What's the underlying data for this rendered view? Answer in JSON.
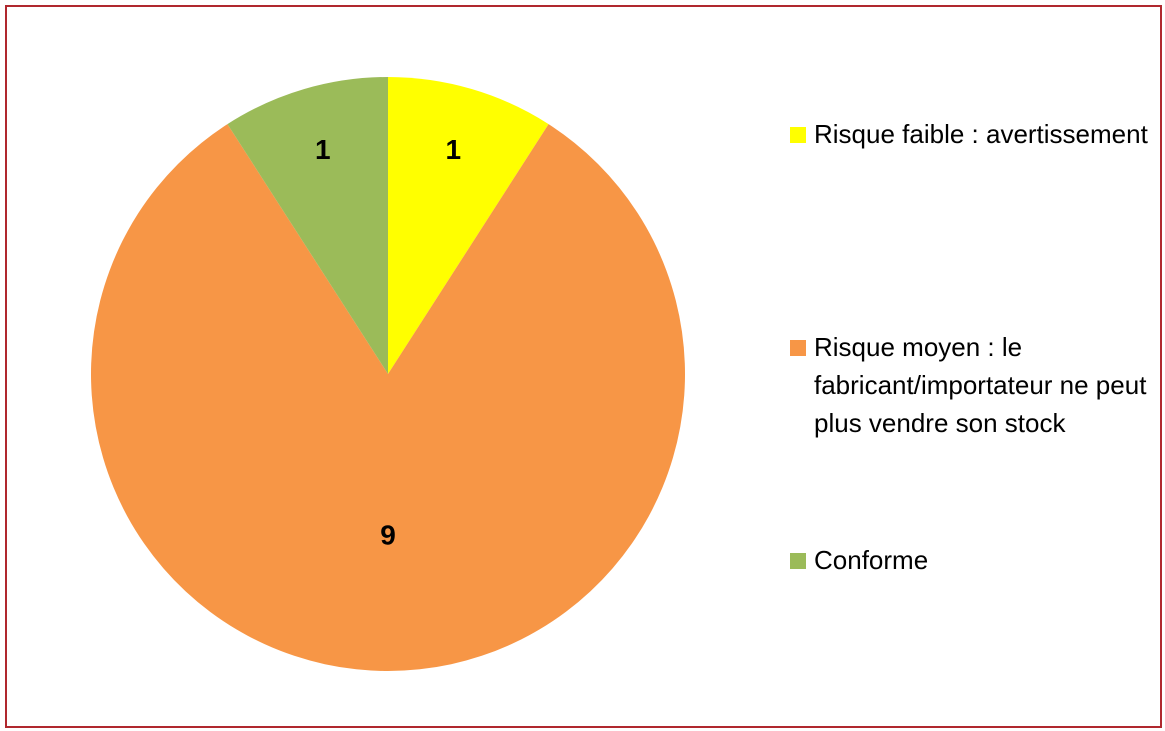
{
  "chart_data": {
    "type": "pie",
    "categories": [
      "Risque faible : avertissement",
      "Risque moyen : le fabricant/importateur ne peut plus vendre son stock",
      "Conforme"
    ],
    "values": [
      1,
      9,
      1
    ],
    "colors": [
      "#ffff00",
      "#f79646",
      "#9bbb59"
    ],
    "legend": "right"
  }
}
